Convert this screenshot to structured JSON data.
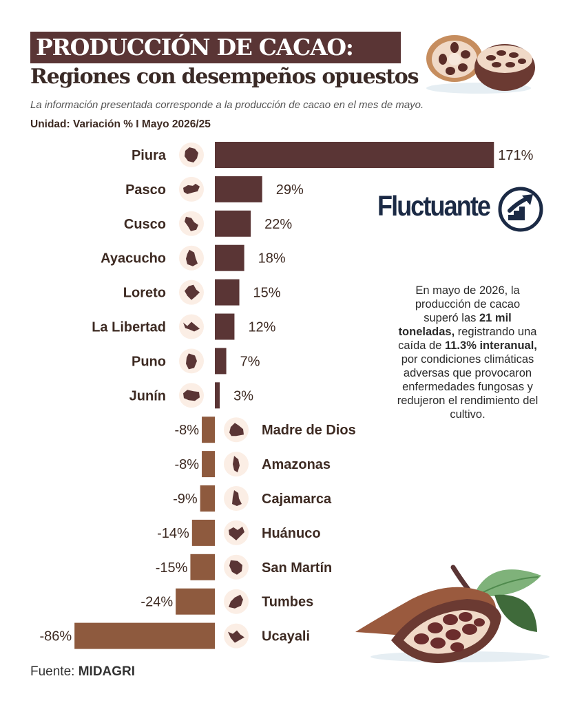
{
  "header": {
    "title": "PRODUCCIÓN DE CACAO:",
    "subtitle": "Regiones con desempeños opuestos",
    "note": "La información presentada corresponde a la producción de cacao en el mes de mayo.",
    "unit": "Unidad: Variación % I Mayo 2026/25"
  },
  "brand": {
    "name": "Fluctuante",
    "logo_icon": "rising-chart-arrow-icon"
  },
  "summary": {
    "t1": "En mayo de 2026, la producción de cacao superó las ",
    "b1": "21 mil toneladas,",
    "t2": " registrando una caída de ",
    "b2": "11.3% interanual,",
    "t3": " por condiciones climáticas adversas que provocaron enfermedades fungosas y redujeron el rendimiento del cultivo."
  },
  "source": {
    "label": "Fuente: ",
    "value": "MIDAGRI"
  },
  "colors": {
    "positive": "#5a3535",
    "negative": "#8e5a3e",
    "map_icon": "#5a3535",
    "icon_bg": "#fbeee5",
    "text": "#3d2a22"
  },
  "chart_data": {
    "type": "bar",
    "orientation": "horizontal",
    "title": "PRODUCCIÓN DE CACAO:",
    "subtitle": "Regiones con desempeños opuestos",
    "unit": "Unidad: Variación % I Mayo 2026/25",
    "categories": [
      "Piura",
      "Pasco",
      "Cusco",
      "Ayacucho",
      "Loreto",
      "La Libertad",
      "Puno",
      "Junín",
      "Madre de Dios",
      "Amazonas",
      "Cajamarca",
      "Huánuco",
      "San Martín",
      "Tumbes",
      "Ucayali"
    ],
    "values": [
      171,
      29,
      22,
      18,
      15,
      12,
      7,
      3,
      -8,
      -8,
      -9,
      -14,
      -15,
      -24,
      -86
    ],
    "value_labels": [
      "171%",
      "29%",
      "22%",
      "18%",
      "15%",
      "12%",
      "7%",
      "3%",
      "-8%",
      "-8%",
      "-9%",
      "-14%",
      "-15%",
      "-24%",
      "-86%"
    ],
    "xlim": [
      -86,
      171
    ],
    "grid": false,
    "legend": "none",
    "icons": "region-map-icon"
  }
}
